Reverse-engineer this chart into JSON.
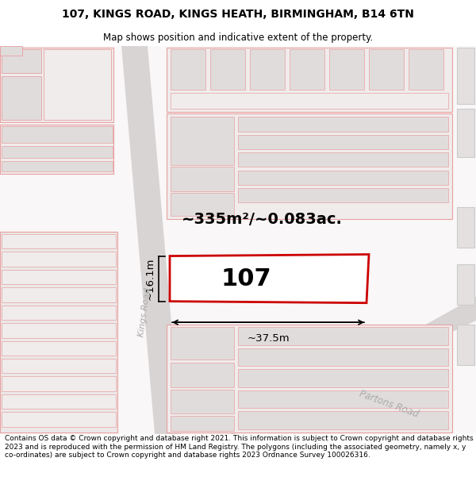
{
  "title_line1": "107, KINGS ROAD, KINGS HEATH, BIRMINGHAM, B14 6TN",
  "title_line2": "Map shows position and indicative extent of the property.",
  "footer_text": "Contains OS data © Crown copyright and database right 2021. This information is subject to Crown copyright and database rights 2023 and is reproduced with the permission of HM Land Registry. The polygons (including the associated geometry, namely x, y co-ordinates) are subject to Crown copyright and database rights 2023 Ordnance Survey 100026316.",
  "background_color": "#ffffff",
  "highlight_color": "#cc0000",
  "highlight_fill": "#ffffff",
  "road_gray": "#d8d4d4",
  "building_fill_light": "#f0ecec",
  "building_fill_gray": "#e0dcdc",
  "building_stroke": "#e8a0a0",
  "building_stroke_dark": "#d88888",
  "area_text": "~335m²/~0.083ac.",
  "label_107": "107",
  "dim_width": "~37.5m",
  "dim_height": "~16.1m",
  "kings_road_label": "Kings Road",
  "partons_road_label": "Partons Road",
  "road_label_color": "#aaaaaa",
  "title_fontsize": 10,
  "subtitle_fontsize": 8.5,
  "footer_fontsize": 6.5
}
